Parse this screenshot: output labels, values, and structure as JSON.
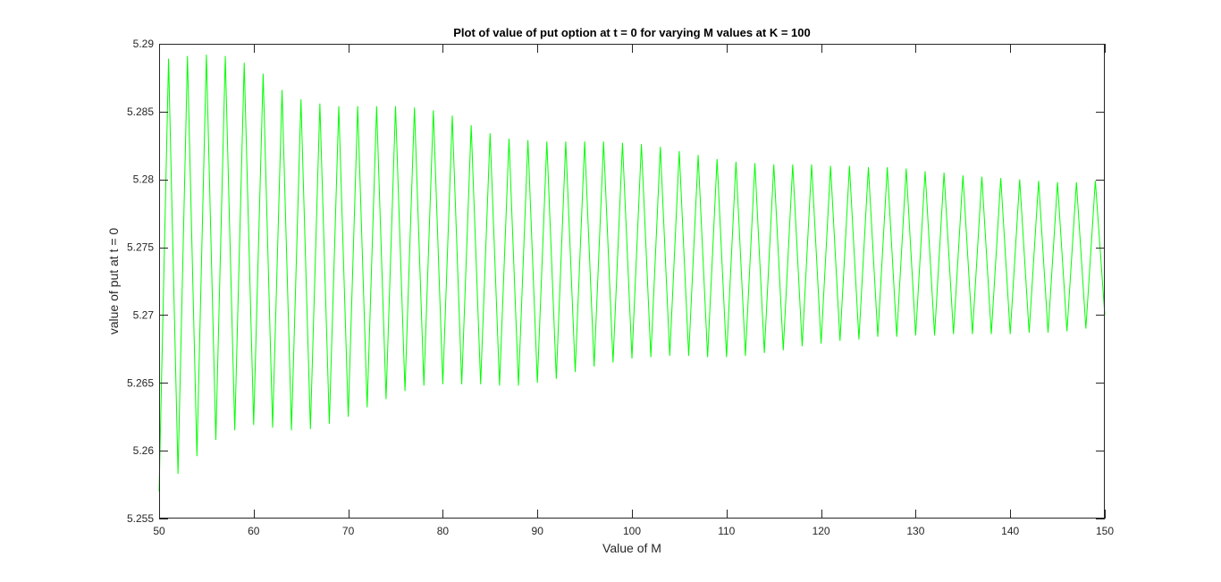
{
  "chart_data": {
    "type": "line",
    "title": "Plot of value of put option at t = 0 for varying M values at K = 100",
    "xlabel": "Value of M",
    "ylabel": "value of put at t = 0",
    "xlim": [
      50,
      150
    ],
    "ylim": [
      5.255,
      5.29
    ],
    "xticks": [
      50,
      60,
      70,
      80,
      90,
      100,
      110,
      120,
      130,
      140,
      150
    ],
    "yticks": [
      5.255,
      5.26,
      5.265,
      5.27,
      5.275,
      5.28,
      5.285,
      5.29
    ],
    "ytick_labels": [
      "5.255",
      "5.26",
      "5.265",
      "5.27",
      "5.275",
      "5.28",
      "5.285",
      "5.29"
    ],
    "grid": false,
    "box": true,
    "series": [
      {
        "color": "#00ff00",
        "x": [
          50,
          51,
          52,
          53,
          54,
          55,
          56,
          57,
          58,
          59,
          60,
          61,
          62,
          63,
          64,
          65,
          66,
          67,
          68,
          69,
          70,
          71,
          72,
          73,
          74,
          75,
          76,
          77,
          78,
          79,
          80,
          81,
          82,
          83,
          84,
          85,
          86,
          87,
          88,
          89,
          90,
          91,
          92,
          93,
          94,
          95,
          96,
          97,
          98,
          99,
          100,
          101,
          102,
          103,
          104,
          105,
          106,
          107,
          108,
          109,
          110,
          111,
          112,
          113,
          114,
          115,
          116,
          117,
          118,
          119,
          120,
          121,
          122,
          123,
          124,
          125,
          126,
          127,
          128,
          129,
          130,
          131,
          132,
          133,
          134,
          135,
          136,
          137,
          138,
          139,
          140,
          141,
          142,
          143,
          144,
          145,
          146,
          147,
          148,
          149,
          150
        ],
        "y": [
          5.257,
          5.2889,
          5.2583,
          5.2891,
          5.2596,
          5.2892,
          5.2608,
          5.2891,
          5.2615,
          5.2886,
          5.2619,
          5.2878,
          5.2617,
          5.2866,
          5.2615,
          5.2859,
          5.2616,
          5.2856,
          5.262,
          5.2854,
          5.2625,
          5.2854,
          5.2632,
          5.2854,
          5.2638,
          5.2854,
          5.2644,
          5.2853,
          5.2648,
          5.2851,
          5.2649,
          5.2847,
          5.2649,
          5.284,
          5.2649,
          5.2834,
          5.2648,
          5.283,
          5.2648,
          5.2829,
          5.265,
          5.2828,
          5.2653,
          5.2828,
          5.2658,
          5.2828,
          5.2662,
          5.2828,
          5.2665,
          5.2827,
          5.2668,
          5.2826,
          5.2669,
          5.2824,
          5.267,
          5.2821,
          5.267,
          5.2818,
          5.2669,
          5.2815,
          5.2669,
          5.2813,
          5.267,
          5.2812,
          5.2672,
          5.2811,
          5.2674,
          5.2811,
          5.2677,
          5.2811,
          5.2679,
          5.281,
          5.2681,
          5.281,
          5.2682,
          5.2809,
          5.2684,
          5.2809,
          5.2684,
          5.2808,
          5.2685,
          5.2806,
          5.2685,
          5.2805,
          5.2686,
          5.2803,
          5.2686,
          5.2802,
          5.2686,
          5.2801,
          5.2686,
          5.28,
          5.2687,
          5.2799,
          5.2687,
          5.2798,
          5.2688,
          5.2798,
          5.269,
          5.2799,
          5.27
        ]
      }
    ]
  }
}
